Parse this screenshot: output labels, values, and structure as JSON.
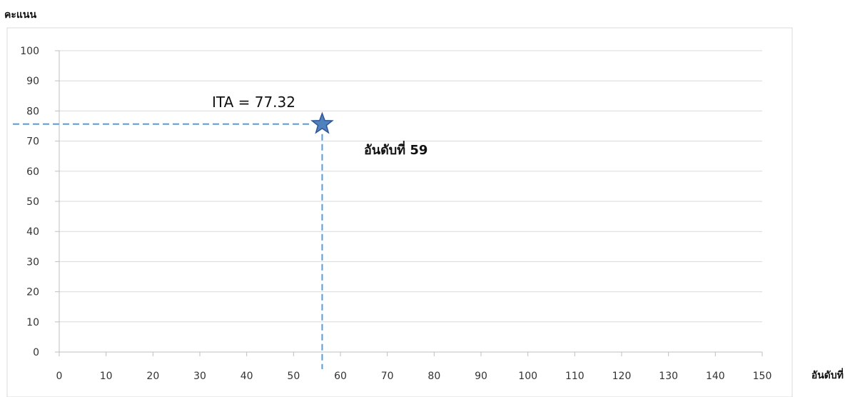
{
  "chart_data": {
    "type": "scatter",
    "title": "",
    "xlabel": "อันดับที่",
    "ylabel": "คะแนน",
    "xlim": [
      0,
      150
    ],
    "ylim": [
      0,
      100
    ],
    "x_ticks": [
      0,
      10,
      20,
      30,
      40,
      50,
      60,
      70,
      80,
      90,
      100,
      110,
      120,
      130,
      140,
      150
    ],
    "y_ticks": [
      0,
      10,
      20,
      30,
      40,
      50,
      60,
      70,
      80,
      90,
      100
    ],
    "grid": "horizontal",
    "legend": "none",
    "series": [
      {
        "x": [
          59
        ],
        "y": [
          77.32
        ],
        "marker": "star",
        "color": "#4f81bd"
      }
    ],
    "annotations": {
      "value_label": "ITA = 77.32",
      "rank_label": "อันดับที่ 59"
    },
    "colors": {
      "marker_fill": "#4f81bd",
      "marker_stroke": "#2f5597",
      "guide_line": "#5b9bd5",
      "gridline": "#d9d9d9",
      "axis": "#bfbfbf",
      "frame": "#d9d9d9"
    }
  }
}
